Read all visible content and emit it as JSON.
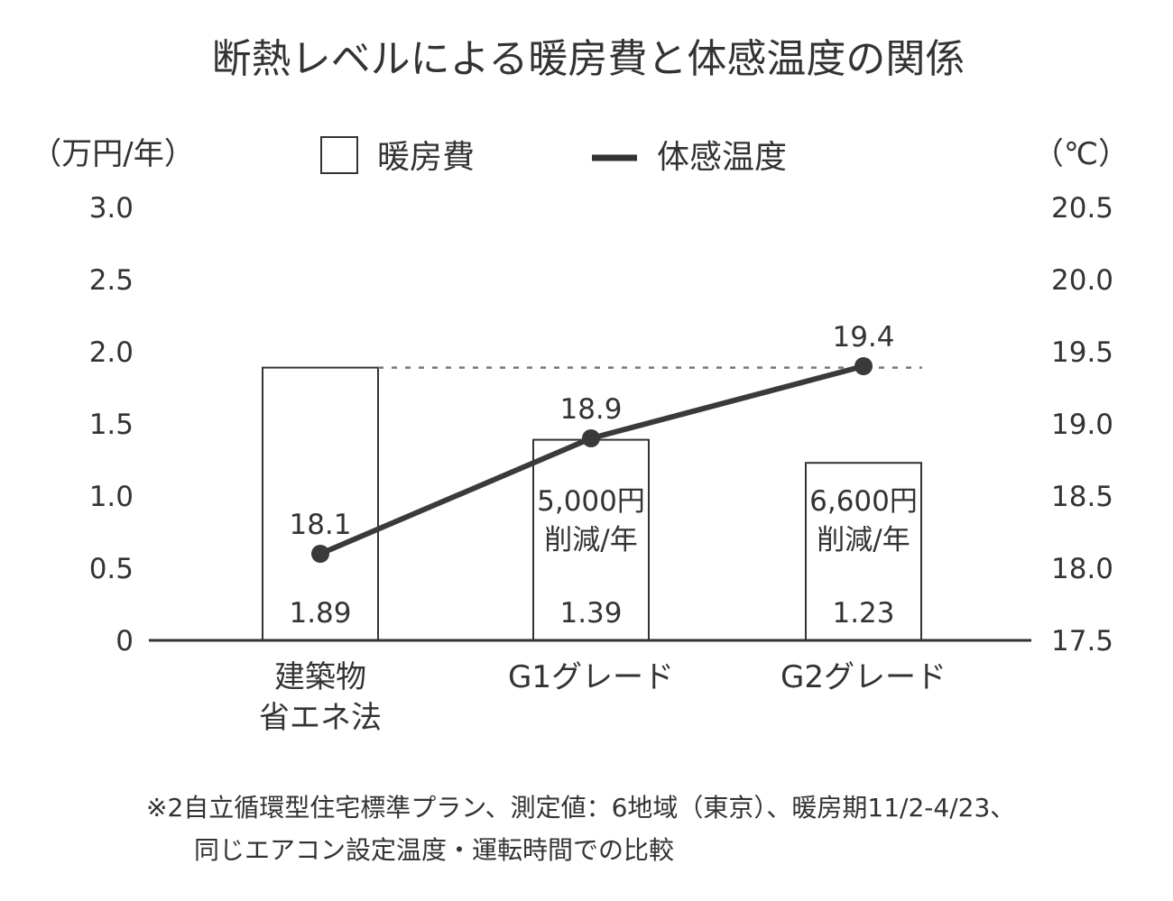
{
  "title": "断熱レベルによる暖房費と体感温度の関係",
  "left_unit": "（万円/年）",
  "right_unit": "（℃）",
  "legend": {
    "bar_label": "暖房費",
    "line_label": "体感温度"
  },
  "colors": {
    "text": "#333333",
    "bar_fill": "#ffffff",
    "bar_stroke": "#333333",
    "line": "#3a3a3a",
    "dotted": "#777777"
  },
  "chart_data": {
    "type": "bar",
    "title": "断熱レベルによる暖房費と体感温度の関係",
    "categories": [
      [
        "建築物",
        "省エネ法"
      ],
      [
        "G1グレード"
      ],
      [
        "G2グレード"
      ]
    ],
    "left_axis": {
      "label": "（万円/年）",
      "ylim": [
        0,
        3.0
      ],
      "ticks": [
        "0",
        "0.5",
        "1.0",
        "1.5",
        "2.0",
        "2.5",
        "3.0"
      ]
    },
    "right_axis": {
      "label": "（℃）",
      "ylim": [
        17.5,
        20.5
      ],
      "ticks": [
        "17.5",
        "18.0",
        "18.5",
        "19.0",
        "19.5",
        "20.0",
        "20.5"
      ]
    },
    "series": [
      {
        "name": "暖房費",
        "type": "bar",
        "axis": "left",
        "values": [
          1.89,
          1.39,
          1.23
        ],
        "labels": [
          "1.89",
          "1.39",
          "1.23"
        ]
      },
      {
        "name": "体感温度",
        "type": "line",
        "axis": "right",
        "values": [
          18.1,
          18.9,
          19.4
        ],
        "labels": [
          "18.1",
          "18.9",
          "19.4"
        ]
      }
    ],
    "annotations": [
      {
        "category_index": 1,
        "lines": [
          "5,000円",
          "削減/年"
        ]
      },
      {
        "category_index": 2,
        "lines": [
          "6,600円",
          "削減/年"
        ]
      }
    ],
    "reference_line": {
      "axis": "left",
      "value": 1.89,
      "style": "dotted"
    },
    "legend_position": "top",
    "grid": false
  },
  "footnote": [
    "※2自立循環型住宅標準プラン、測定値：6地域（東京）、暖房期11/2-4/23、",
    "同じエアコン設定温度・運転時間での比較"
  ]
}
